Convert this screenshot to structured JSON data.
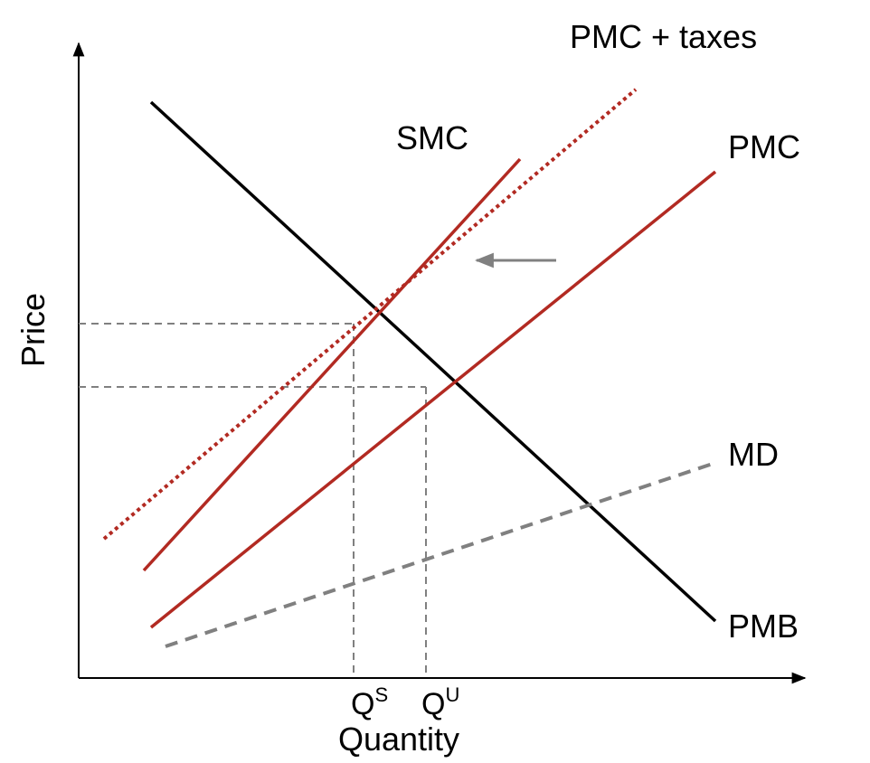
{
  "colors": {
    "axis": "#000000",
    "demand": "#000000",
    "cost": "#b22a22",
    "damage": "#808080",
    "guide": "#808080",
    "arrow": "#808080"
  },
  "labels": {
    "y_axis": "Price",
    "x_axis": "Quantity",
    "pmc_taxes": "PMC + taxes",
    "smc": "SMC",
    "pmc": "PMC",
    "md": "MD",
    "pmb": "PMB",
    "q_social": "Q",
    "q_social_sup": "S",
    "q_unreg": "Q",
    "q_unreg_sup": "U"
  },
  "chart_data": {
    "type": "line",
    "title": "",
    "xlabel": "Quantity",
    "ylabel": "Price",
    "xlim": [
      0,
      10
    ],
    "ylim": [
      0,
      10
    ],
    "series": [
      {
        "name": "PMB",
        "style": "solid",
        "color": "#000000",
        "points": [
          [
            1.0,
            9.1
          ],
          [
            8.8,
            0.9
          ]
        ]
      },
      {
        "name": "PMC",
        "style": "solid",
        "color": "#b22a22",
        "points": [
          [
            1.0,
            0.8
          ],
          [
            8.8,
            8.0
          ]
        ]
      },
      {
        "name": "SMC",
        "style": "solid",
        "color": "#b22a22",
        "points": [
          [
            0.9,
            1.7
          ],
          [
            6.1,
            8.2
          ]
        ]
      },
      {
        "name": "PMC + taxes",
        "style": "dotted",
        "color": "#b22a22",
        "points": [
          [
            0.35,
            2.2
          ],
          [
            7.7,
            9.3
          ]
        ]
      },
      {
        "name": "MD",
        "style": "dashed",
        "color": "#808080",
        "points": [
          [
            1.2,
            0.5
          ],
          [
            8.8,
            3.4
          ]
        ]
      }
    ],
    "points": {
      "social_optimum": {
        "x": 3.8,
        "y": 5.6
      },
      "unregulated": {
        "x": 4.8,
        "y": 4.6
      }
    },
    "annotations": [
      {
        "type": "arrow",
        "direction": "left",
        "from": [
          6.6,
          6.6
        ],
        "to": [
          5.5,
          6.6
        ]
      }
    ]
  }
}
